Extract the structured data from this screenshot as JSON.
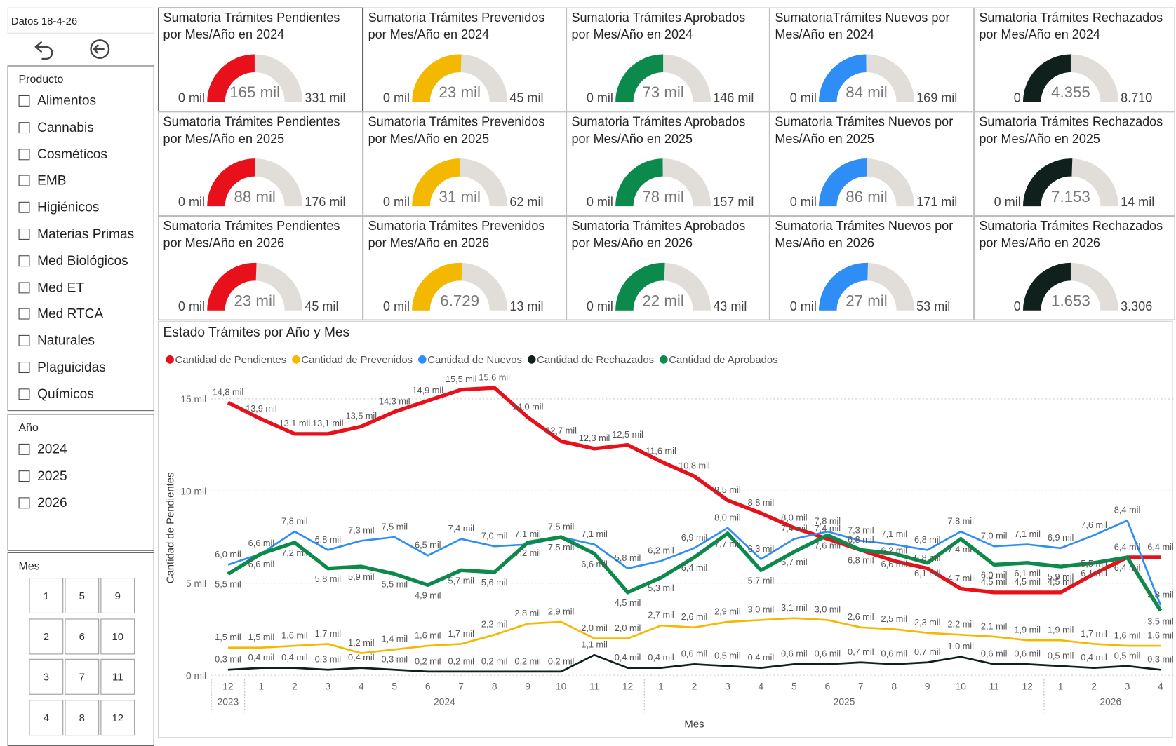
{
  "sidebar": {
    "data_date": "Datos 18-4-26",
    "product": {
      "title": "Producto",
      "items": [
        "Alimentos",
        "Cannabis",
        "Cosméticos",
        "EMB",
        "Higiénicos",
        "Materias Primas",
        "Med Biológicos",
        "Med ET",
        "Med RTCA",
        "Naturales",
        "Plaguicidas",
        "Químicos"
      ]
    },
    "year": {
      "title": "Año",
      "items": [
        "2024",
        "2025",
        "2026"
      ]
    },
    "month": {
      "title": "Mes",
      "items": [
        1,
        5,
        9,
        2,
        6,
        10,
        3,
        7,
        11,
        4,
        8,
        12
      ]
    }
  },
  "chart_data": [
    {
      "type": "gauge",
      "title": "Sumatoria Trámites Pendientes por Mes/Año en 2024",
      "color": "#e8111b",
      "min": 0,
      "min_label": "0 mil",
      "value": 165000,
      "value_label": "165 mil",
      "max": 331000,
      "max_label": "331 mil"
    },
    {
      "type": "gauge",
      "title": "Sumatoria Trámites Prevenidos por Mes/Año en 2024",
      "color": "#f5b800",
      "min": 0,
      "min_label": "0 mil",
      "value": 23000,
      "value_label": "23 mil",
      "max": 45000,
      "max_label": "45 mil"
    },
    {
      "type": "gauge",
      "title": "Sumatoria Trámites Aprobados por Mes/Año en 2024",
      "color": "#0c8a4b",
      "min": 0,
      "min_label": "0 mil",
      "value": 73000,
      "value_label": "73 mil",
      "max": 146000,
      "max_label": "146 mil"
    },
    {
      "type": "gauge",
      "title": "SumatoriaTrámites Nuevos por Mes/Año en 2024",
      "color": "#2f8ef5",
      "min": 0,
      "min_label": "0 mil",
      "value": 84000,
      "value_label": "84 mil",
      "max": 169000,
      "max_label": "169 mil"
    },
    {
      "type": "gauge",
      "title": "Sumatoria Trámites Rechazados por Mes/Año en 2024",
      "color": "#10201d",
      "min": 0,
      "min_label": "0",
      "value": 4355,
      "value_label": "4.355",
      "max": 8710,
      "max_label": "8.710"
    },
    {
      "type": "gauge",
      "title": "Sumatoria Trámites Pendientes por Mes/Año en 2025",
      "color": "#e8111b",
      "min": 0,
      "min_label": "0 mil",
      "value": 88000,
      "value_label": "88 mil",
      "max": 176000,
      "max_label": "176 mil"
    },
    {
      "type": "gauge",
      "title": "Sumatoria Trámites Prevenidos por Mes/Año en 2025",
      "color": "#f5b800",
      "min": 0,
      "min_label": "0 mil",
      "value": 31000,
      "value_label": "31 mil",
      "max": 62000,
      "max_label": "62 mil"
    },
    {
      "type": "gauge",
      "title": "Sumatoria Trámites Aprobados por Mes/Año en 2025",
      "color": "#0c8a4b",
      "min": 0,
      "min_label": "0 mil",
      "value": 78000,
      "value_label": "78 mil",
      "max": 157000,
      "max_label": "157 mil"
    },
    {
      "type": "gauge",
      "title": "Sumatoria Trámites Nuevos por Mes/Año en 2025",
      "color": "#2f8ef5",
      "min": 0,
      "min_label": "0 mil",
      "value": 86000,
      "value_label": "86 mil",
      "max": 171000,
      "max_label": "171 mil"
    },
    {
      "type": "gauge",
      "title": "Sumatoria Trámites Rechazados por Mes/Año en 2025",
      "color": "#10201d",
      "min": 0,
      "min_label": "0 mil",
      "value": 7153,
      "value_label": "7.153",
      "max": 14000,
      "max_label": "14 mil"
    },
    {
      "type": "gauge",
      "title": "Sumatoria Trámites Pendientes por Mes/Año en 2026",
      "color": "#e8111b",
      "min": 0,
      "min_label": "0 mil",
      "value": 23000,
      "value_label": "23 mil",
      "max": 45000,
      "max_label": "45 mil"
    },
    {
      "type": "gauge",
      "title": "Sumatoria Trámites Prevenidos por Mes/Año en 2026",
      "color": "#f5b800",
      "min": 0,
      "min_label": "0 mil",
      "value": 6729,
      "value_label": "6.729",
      "max": 13000,
      "max_label": "13 mil"
    },
    {
      "type": "gauge",
      "title": "Sumatoria Trámites Aprobados por Mes/Año en 2026",
      "color": "#0c8a4b",
      "min": 0,
      "min_label": "0 mil",
      "value": 22000,
      "value_label": "22 mil",
      "max": 43000,
      "max_label": "43 mil"
    },
    {
      "type": "gauge",
      "title": "Sumatoria Trámites Nuevos por Mes/Año en 2026",
      "color": "#2f8ef5",
      "min": 0,
      "min_label": "0 mil",
      "value": 27000,
      "value_label": "27 mil",
      "max": 53000,
      "max_label": "53 mil"
    },
    {
      "type": "gauge",
      "title": "Sumatoria Trámites Rechazados por Mes/Año en 2026",
      "color": "#10201d",
      "min": 0,
      "min_label": "0",
      "value": 1653,
      "value_label": "1.653",
      "max": 3306,
      "max_label": "3.306"
    },
    {
      "type": "line",
      "title": "Estado Trámites por Año y Mes",
      "x_label": "Mes",
      "y_label": "Cantidad de Pendientes",
      "categories": [
        "12",
        "1",
        "2",
        "3",
        "4",
        "5",
        "6",
        "7",
        "8",
        "9",
        "10",
        "11",
        "12",
        "1",
        "2",
        "3",
        "4",
        "5",
        "6",
        "7",
        "8",
        "9",
        "10",
        "11",
        "12",
        "1",
        "2",
        "3",
        "4"
      ],
      "year_labels": [
        "2023",
        "2024",
        "2025",
        "2026"
      ],
      "ylim": [
        0,
        16000
      ],
      "yticks": [
        {
          "value": 0,
          "label": "0 mil"
        },
        {
          "value": 5000,
          "label": "5 mil"
        },
        {
          "value": 10000,
          "label": "10 mil"
        },
        {
          "value": 15000,
          "label": "15 mil"
        }
      ],
      "grid": true,
      "series": [
        {
          "name": "Cantidad de Pendientes",
          "color": "#e8111b",
          "values": [
            14800,
            13900,
            13100,
            13100,
            13500,
            14300,
            14900,
            15500,
            15600,
            14000,
            12700,
            12300,
            12500,
            11600,
            10800,
            9500,
            8800,
            8000,
            7400,
            6800,
            6200,
            5800,
            4700,
            4500,
            4500,
            4500,
            5500,
            6400,
            6400
          ],
          "value_labels": [
            "14,8 mil",
            "13,9 mil",
            "13,1 mil",
            "13,1 mil",
            "13,5 mil",
            "14,3 mil",
            "14,9 mil",
            "15,5 mil",
            "15,6 mil",
            "14,0 mil",
            "12,7 mil",
            "12,3 mil",
            "12,5 mil",
            "11,6 mil",
            "10,8 mil",
            "9,5 mil",
            "8,8 mil",
            "8,0 mil",
            "7,4 mil",
            "6,8 mil",
            "6,2 mil",
            "5,8 mil",
            "4,7 mil",
            "4,5 mil",
            "4,5 mil",
            "4,5 mil",
            "5,5 mil",
            "6,4 mil",
            "6,4 mil"
          ]
        },
        {
          "name": "Cantidad de Prevenidos",
          "color": "#f5b800",
          "values": [
            1500,
            1500,
            1600,
            1700,
            1200,
            1400,
            1600,
            1700,
            2200,
            2800,
            2900,
            2000,
            2000,
            2700,
            2600,
            2900,
            3000,
            3100,
            3000,
            2600,
            2500,
            2300,
            2200,
            2100,
            1900,
            1900,
            1700,
            1600,
            1600
          ],
          "value_labels": [
            "1,5 mil",
            "1,5 mil",
            "1,6 mil",
            "1,7 mil",
            "1,2 mil",
            "1,4 mil",
            "1,6 mil",
            "1,7 mil",
            "2,2 mil",
            "2,8 mil",
            "2,9 mil",
            "2,0 mil",
            "2,0 mil",
            "2,7 mil",
            "2,6 mil",
            "2,9 mil",
            "3,0 mil",
            "3,1 mil",
            "3,0 mil",
            "2,6 mil",
            "2,5 mil",
            "2,3 mil",
            "2,2 mil",
            "2,1 mil",
            "1,9 mil",
            "1,9 mil",
            "1,7 mil",
            "1,6 mil",
            "1,6 mil"
          ]
        },
        {
          "name": "Cantidad de Nuevos",
          "color": "#2f8ef5",
          "values": [
            6000,
            6600,
            7800,
            6800,
            7300,
            7500,
            6500,
            7400,
            7000,
            7100,
            7500,
            7100,
            5800,
            6200,
            6900,
            8000,
            6300,
            7400,
            7800,
            7300,
            7100,
            6800,
            7800,
            7000,
            7100,
            6900,
            7600,
            8400,
            3800
          ],
          "value_labels": [
            "6,0 mil",
            "6,6 mil",
            "7,8 mil",
            "6,8 mil",
            "7,3 mil",
            "7,5 mil",
            "6,5 mil",
            "7,4 mil",
            "7,0 mil",
            "7,1 mil",
            "7,5 mil",
            "7,1 mil",
            "5,8 mil",
            "6,2 mil",
            "6,9 mil",
            "8,0 mil",
            "6,3 mil",
            "7,4 mil",
            "7,8 mil",
            "7,3 mil",
            "7,1 mil",
            "6,8 mil",
            "7,8 mil",
            "7,0 mil",
            "7,1 mil",
            "6,9 mil",
            "7,6 mil",
            "8,4 mil",
            "3,8 mil"
          ]
        },
        {
          "name": "Cantidad de Rechazados",
          "color": "#10201d",
          "values": [
            300,
            400,
            400,
            300,
            400,
            300,
            200,
            200,
            200,
            200,
            200,
            1100,
            400,
            400,
            600,
            500,
            400,
            600,
            600,
            700,
            600,
            700,
            1000,
            600,
            600,
            500,
            400,
            500,
            300
          ],
          "value_labels": [
            "0,3 mil",
            "0,4 mil",
            "0,4 mil",
            "0,3 mil",
            "0,4 mil",
            "0,3 mil",
            "0,2 mil",
            "0,2 mil",
            "0,2 mil",
            "0,2 mil",
            "0,2 mil",
            "1,1 mil",
            "0,4 mil",
            "0,4 mil",
            "0,6 mil",
            "0,5 mil",
            "0,4 mil",
            "0,6 mil",
            "0,6 mil",
            "0,7 mil",
            "0,6 mil",
            "0,7 mil",
            "1,0 mil",
            "0,6 mil",
            "0,6 mil",
            "0,5 mil",
            "0,4 mil",
            "0,5 mil",
            "0,3 mil"
          ]
        },
        {
          "name": "Cantidad de Aprobados",
          "color": "#0c8a4b",
          "values": [
            5500,
            6600,
            7200,
            5800,
            5900,
            5500,
            4900,
            5700,
            5600,
            7200,
            7500,
            6600,
            4500,
            5300,
            6400,
            7700,
            5700,
            6700,
            7600,
            6800,
            6600,
            6100,
            7400,
            6000,
            6100,
            5900,
            6100,
            6400,
            3500
          ],
          "value_labels": [
            "5,5 mil",
            "6,6 mil",
            "7,2 mil",
            "5,8 mil",
            "5,9 mil",
            "5,5 mil",
            "4,9 mil",
            "5,7 mil",
            "5,6 mil",
            "7,2 mil",
            "7,5 mil",
            "6,6 mil",
            "4,5 mil",
            "5,3 mil",
            "6,4 mil",
            "7,7 mil",
            "5,7 mil",
            "6,7 mil",
            "7,6 mil",
            "6,8 mil",
            "6,6 mil",
            "6,1 mil",
            "7,4 mil",
            "6,0 mil",
            "6,1 mil",
            "5,9 mil",
            "6,1 mil",
            "6,4 mil",
            "3,5 mil"
          ]
        }
      ]
    }
  ]
}
